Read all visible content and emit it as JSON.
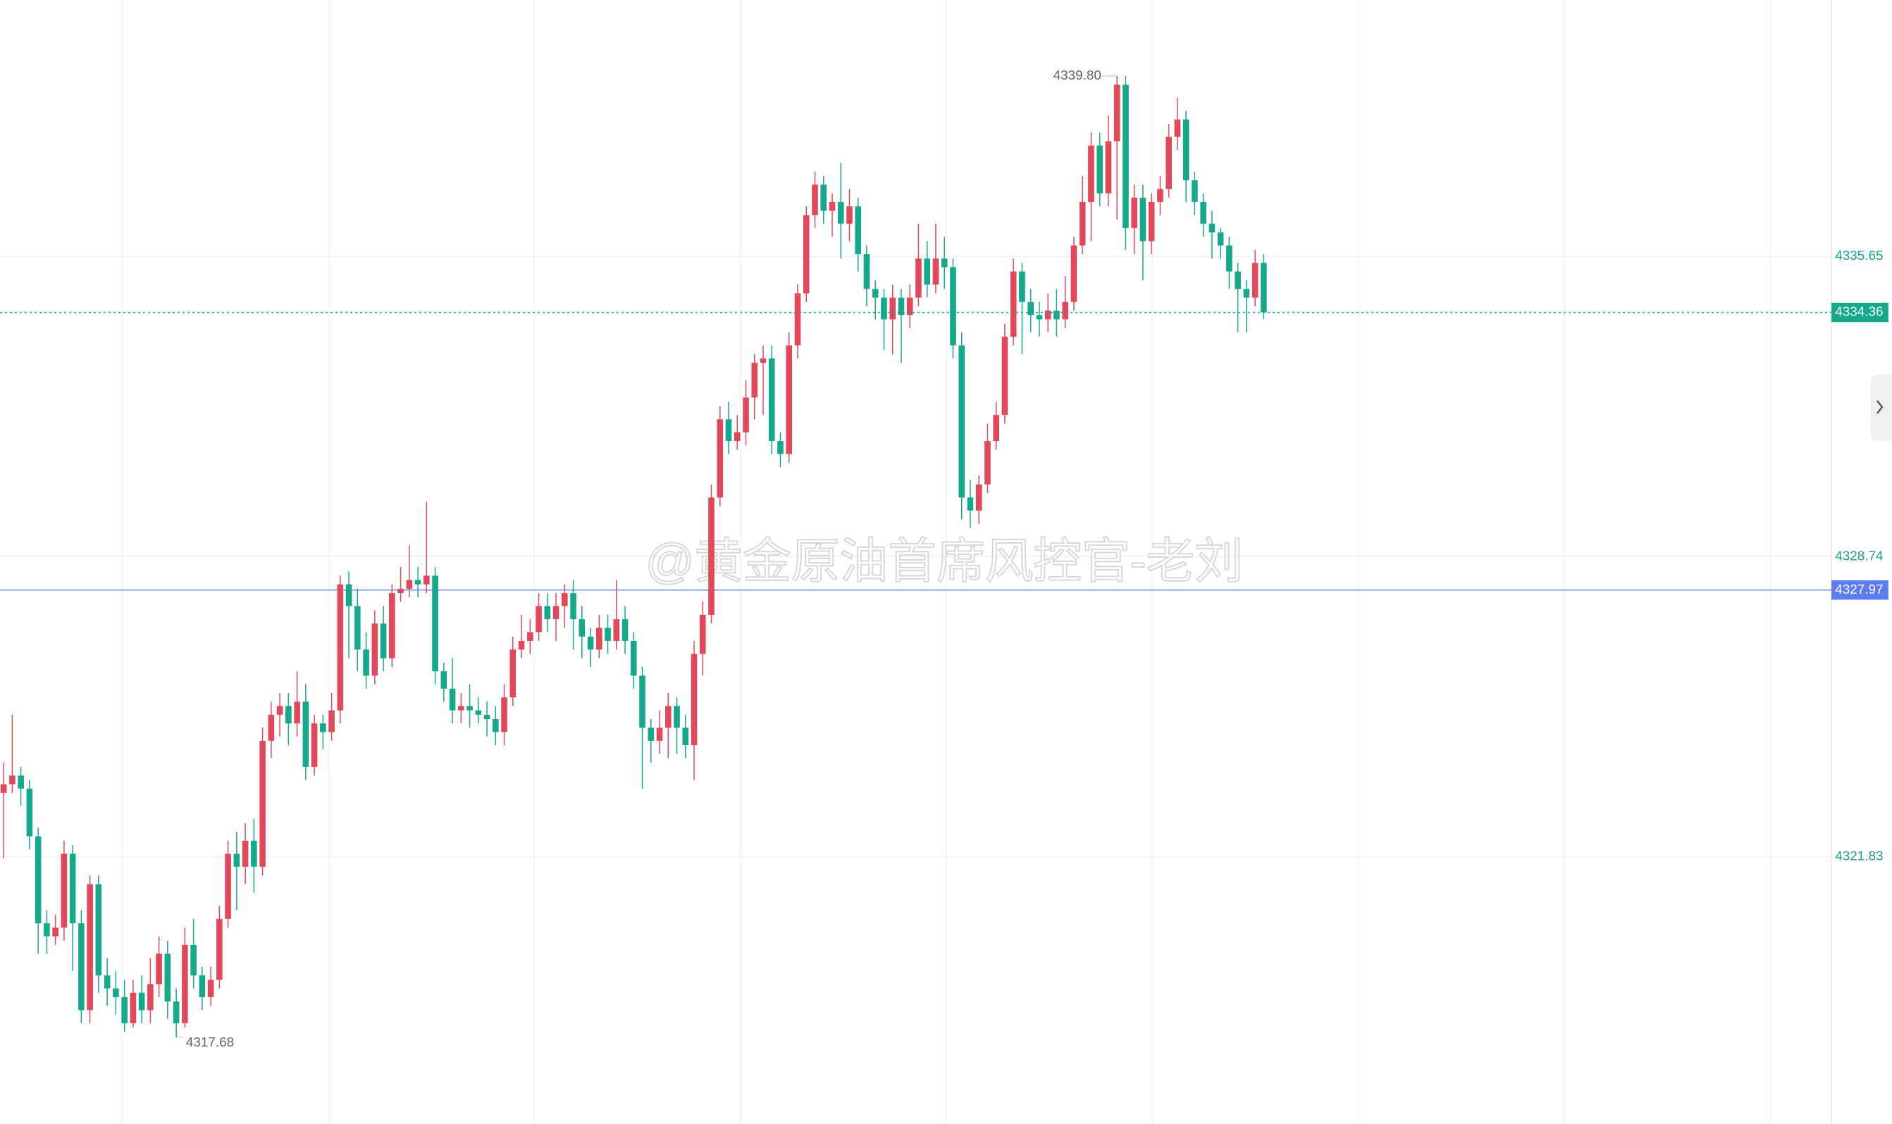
{
  "chart_data": {
    "type": "candlestick",
    "open": [
      4323.3,
      4323.5,
      4323.7,
      4323.4,
      4322.3,
      4320.3,
      4320.0,
      4320.2,
      4321.9,
      4320.3,
      4318.3,
      4321.2,
      4319.1,
      4318.8,
      4318.6,
      4318.0,
      4318.7,
      4318.3,
      4318.9,
      4319.6,
      4318.5,
      4318.0,
      4319.8,
      4319.1,
      4318.6,
      4319.0,
      4320.4,
      4321.9,
      4321.6,
      4322.2,
      4321.6,
      4324.5,
      4325.1,
      4325.3,
      4324.9,
      4325.4,
      4323.9,
      4324.9,
      4324.7,
      4325.2,
      4328.1,
      4327.6,
      4326.6,
      4326.0,
      4327.2,
      4326.4,
      4327.9,
      4328.0,
      4328.2,
      4328.1,
      4328.3,
      4326.1,
      4325.7,
      4325.2,
      4325.3,
      4325.2,
      4325.1,
      4325.0,
      4324.7,
      4325.5,
      4326.6,
      4326.8,
      4327.0,
      4327.6,
      4327.3,
      4327.6,
      4327.9,
      4327.3,
      4326.9,
      4326.6,
      4327.1,
      4326.8,
      4327.3,
      4326.8,
      4326.0,
      4324.8,
      4324.5,
      4324.8,
      4325.3,
      4324.8,
      4324.4,
      4326.5,
      4327.4,
      4330.1,
      4331.9,
      4331.4,
      4331.6,
      4332.4,
      4333.2,
      4333.3,
      4331.4,
      4331.1,
      4333.6,
      4334.8,
      4336.6,
      4337.3,
      4336.7,
      4336.9,
      4336.4,
      4336.8,
      4335.7,
      4334.9,
      4334.7,
      4334.2,
      4334.7,
      4334.3,
      4334.7,
      4335.6,
      4335.0,
      4335.6,
      4335.4,
      4333.6,
      4330.1,
      4329.8,
      4330.4,
      4331.4,
      4332.0,
      4333.8,
      4335.3,
      4334.6,
      4334.3,
      4334.2,
      4334.4,
      4334.2,
      4334.6,
      4335.9,
      4336.9,
      4338.2,
      4337.1,
      4338.3,
      4339.6,
      4336.3,
      4337.0,
      4336.0,
      4336.9,
      4337.2,
      4338.4,
      4338.8,
      4337.4,
      4336.9,
      4336.4,
      4336.2,
      4335.9,
      4335.3,
      4334.9,
      4334.7,
      4335.5
    ],
    "high": [
      4324.0,
      4325.1,
      4323.9,
      4323.6,
      4322.5,
      4320.6,
      4320.5,
      4322.2,
      4322.1,
      4320.6,
      4321.4,
      4321.4,
      4319.5,
      4319.2,
      4319.0,
      4319.0,
      4319.1,
      4319.5,
      4320.0,
      4319.9,
      4318.8,
      4320.2,
      4320.4,
      4319.3,
      4319.3,
      4320.7,
      4322.2,
      4322.4,
      4322.6,
      4322.7,
      4324.8,
      4325.4,
      4325.6,
      4325.6,
      4326.1,
      4325.8,
      4325.1,
      4325.1,
      4325.6,
      4328.3,
      4328.4,
      4328.0,
      4327.0,
      4327.5,
      4327.6,
      4328.1,
      4328.5,
      4329.0,
      4328.5,
      4330.0,
      4328.5,
      4326.3,
      4326.4,
      4325.6,
      4325.8,
      4325.5,
      4325.4,
      4325.3,
      4325.8,
      4326.9,
      4327.4,
      4327.3,
      4327.9,
      4327.9,
      4327.9,
      4328.1,
      4328.2,
      4327.6,
      4327.1,
      4327.4,
      4327.4,
      4328.2,
      4327.6,
      4327.0,
      4326.2,
      4325.0,
      4325.2,
      4325.6,
      4325.5,
      4325.1,
      4326.8,
      4327.7,
      4330.4,
      4332.2,
      4332.3,
      4332.0,
      4332.8,
      4333.4,
      4333.6,
      4333.6,
      4331.6,
      4333.9,
      4335.0,
      4336.8,
      4337.6,
      4337.5,
      4337.1,
      4337.8,
      4337.2,
      4337.0,
      4335.9,
      4335.1,
      4334.9,
      4335.0,
      4334.9,
      4335.0,
      4336.4,
      4336.0,
      4336.4,
      4336.1,
      4335.6,
      4333.9,
      4330.5,
      4330.6,
      4331.8,
      4332.3,
      4334.1,
      4335.6,
      4335.5,
      4334.9,
      4334.6,
      4334.8,
      4334.9,
      4335.2,
      4336.1,
      4337.5,
      4338.5,
      4338.5,
      4338.9,
      4339.8,
      4339.8,
      4337.3,
      4337.3,
      4337.1,
      4337.5,
      4338.7,
      4339.3,
      4339.0,
      4337.6,
      4337.1,
      4336.7,
      4336.3,
      4336.1,
      4335.5,
      4335.1,
      4335.8,
      4335.7
    ],
    "low": [
      4321.8,
      4323.3,
      4323.0,
      4322.0,
      4319.6,
      4319.6,
      4319.8,
      4319.9,
      4319.2,
      4318.0,
      4318.0,
      4318.7,
      4318.4,
      4318.2,
      4317.8,
      4317.9,
      4318.0,
      4318.0,
      4318.6,
      4318.1,
      4317.68,
      4317.9,
      4318.8,
      4318.3,
      4318.4,
      4318.8,
      4320.2,
      4320.6,
      4321.2,
      4321.0,
      4321.4,
      4324.1,
      4324.6,
      4324.4,
      4324.6,
      4323.6,
      4323.7,
      4324.3,
      4324.5,
      4324.9,
      4326.4,
      4326.1,
      4325.7,
      4325.8,
      4326.1,
      4326.2,
      4327.7,
      4327.8,
      4327.8,
      4327.9,
      4325.8,
      4325.4,
      4324.9,
      4324.9,
      4324.8,
      4324.9,
      4324.6,
      4324.4,
      4324.4,
      4325.3,
      4326.4,
      4326.5,
      4326.8,
      4327.0,
      4326.8,
      4327.1,
      4326.6,
      4326.4,
      4326.2,
      4326.4,
      4326.5,
      4326.6,
      4326.5,
      4325.7,
      4323.4,
      4324.0,
      4324.2,
      4324.1,
      4324.2,
      4324.1,
      4323.6,
      4326.0,
      4327.2,
      4329.9,
      4331.1,
      4331.2,
      4331.3,
      4331.9,
      4332.0,
      4331.1,
      4330.8,
      4330.9,
      4333.3,
      4334.6,
      4336.3,
      4336.4,
      4336.1,
      4335.6,
      4336.0,
      4335.3,
      4334.5,
      4334.2,
      4333.5,
      4333.4,
      4333.2,
      4334.0,
      4334.5,
      4334.7,
      4334.8,
      4334.9,
      4333.3,
      4329.6,
      4329.4,
      4329.5,
      4330.2,
      4331.2,
      4331.8,
      4333.6,
      4333.4,
      4333.9,
      4333.8,
      4333.9,
      4333.8,
      4334.0,
      4334.4,
      4335.7,
      4336.0,
      4336.8,
      4336.8,
      4336.5,
      4335.8,
      4335.7,
      4335.1,
      4335.7,
      4336.6,
      4337.0,
      4338.1,
      4336.9,
      4336.6,
      4336.1,
      4335.6,
      4335.6,
      4334.9,
      4333.9,
      4333.9,
      4334.5,
      4334.2
    ],
    "close": [
      4323.5,
      4323.7,
      4323.4,
      4322.3,
      4320.3,
      4320.0,
      4320.2,
      4321.9,
      4320.3,
      4318.3,
      4321.2,
      4319.1,
      4318.8,
      4318.6,
      4318.0,
      4318.7,
      4318.3,
      4318.9,
      4319.6,
      4318.5,
      4318.0,
      4319.8,
      4319.1,
      4318.6,
      4319.0,
      4320.4,
      4321.9,
      4321.6,
      4322.2,
      4321.6,
      4324.5,
      4325.1,
      4325.3,
      4324.9,
      4325.4,
      4323.9,
      4324.9,
      4324.7,
      4325.2,
      4328.1,
      4327.6,
      4326.6,
      4326.0,
      4327.2,
      4326.4,
      4327.9,
      4328.0,
      4328.2,
      4328.1,
      4328.3,
      4326.1,
      4325.7,
      4325.2,
      4325.3,
      4325.2,
      4325.1,
      4325.0,
      4324.7,
      4325.5,
      4326.6,
      4326.8,
      4327.0,
      4327.6,
      4327.3,
      4327.6,
      4327.9,
      4327.3,
      4326.9,
      4326.6,
      4327.1,
      4326.8,
      4327.3,
      4326.8,
      4326.0,
      4324.8,
      4324.5,
      4324.8,
      4325.3,
      4324.8,
      4324.4,
      4326.5,
      4327.4,
      4330.1,
      4331.9,
      4331.4,
      4331.6,
      4332.4,
      4333.2,
      4333.3,
      4331.4,
      4331.1,
      4333.6,
      4334.8,
      4336.6,
      4337.3,
      4336.7,
      4336.9,
      4336.4,
      4336.8,
      4335.7,
      4334.9,
      4334.7,
      4334.2,
      4334.7,
      4334.3,
      4334.7,
      4335.6,
      4335.0,
      4335.6,
      4335.4,
      4333.6,
      4330.1,
      4329.8,
      4330.4,
      4331.4,
      4332.0,
      4333.8,
      4335.3,
      4334.6,
      4334.3,
      4334.2,
      4334.4,
      4334.2,
      4334.6,
      4335.9,
      4336.9,
      4338.2,
      4337.1,
      4338.3,
      4339.6,
      4336.3,
      4337.0,
      4336.0,
      4336.9,
      4337.2,
      4338.4,
      4338.8,
      4337.4,
      4336.9,
      4336.4,
      4336.2,
      4335.9,
      4335.3,
      4334.9,
      4334.7,
      4335.5,
      4334.36
    ],
    "up_color": "#e2485a",
    "down_color": "#14a98b",
    "ylim": [
      4315.68,
      4341.55
    ],
    "yticks": [
      4335.65,
      4328.74,
      4321.83
    ],
    "grid": true,
    "reference_line": {
      "value": 4327.97,
      "color": "#5b7cf2"
    },
    "max_marker": {
      "value": 4339.8,
      "label": "4339.80"
    },
    "min_marker": 4317.68,
    "watermark": "@黄金原油首席风控官-老刘"
  }
}
